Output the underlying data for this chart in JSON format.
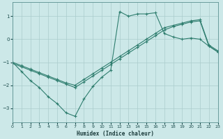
{
  "xlabel": "Humidex (Indice chaleur)",
  "bg_color": "#cce8e8",
  "grid_color": "#aacccc",
  "line_color": "#2e7d6e",
  "xlim": [
    0,
    23
  ],
  "ylim": [
    -3.6,
    1.6
  ],
  "yticks": [
    -3,
    -2,
    -1,
    0,
    1
  ],
  "xticks": [
    0,
    1,
    2,
    3,
    4,
    5,
    6,
    7,
    8,
    9,
    10,
    11,
    12,
    13,
    14,
    15,
    16,
    17,
    18,
    19,
    20,
    21,
    22,
    23
  ],
  "line1_x": [
    0,
    1,
    2,
    3,
    4,
    5,
    6,
    7,
    8,
    9,
    10,
    11,
    12,
    13,
    14,
    15,
    16,
    17,
    18,
    19,
    20,
    21,
    22,
    23
  ],
  "line1_y": [
    -1.0,
    -1.4,
    -1.8,
    -2.1,
    -2.5,
    -2.8,
    -3.2,
    -3.35,
    -2.6,
    -2.05,
    -1.65,
    -1.35,
    1.2,
    1.0,
    1.1,
    1.1,
    1.15,
    0.25,
    0.1,
    0.0,
    0.05,
    0.0,
    -0.3,
    -0.55
  ],
  "line2_x": [
    0,
    1,
    2,
    3,
    4,
    5,
    6,
    7,
    8,
    9,
    10,
    11,
    12,
    13,
    14,
    15,
    16,
    17,
    18,
    19,
    20,
    21,
    22,
    23
  ],
  "line2_y": [
    -1.0,
    -1.15,
    -1.3,
    -1.45,
    -1.6,
    -1.75,
    -1.9,
    -2.0,
    -1.75,
    -1.5,
    -1.25,
    -1.0,
    -0.75,
    -0.5,
    -0.25,
    0.0,
    0.25,
    0.5,
    0.6,
    0.7,
    0.8,
    0.85,
    -0.25,
    -0.5
  ],
  "line3_x": [
    0,
    1,
    2,
    3,
    4,
    5,
    6,
    7,
    8,
    9,
    10,
    11,
    12,
    13,
    14,
    15,
    16,
    17,
    18,
    19,
    20,
    21,
    22,
    23
  ],
  "line3_y": [
    -1.05,
    -1.2,
    -1.35,
    -1.5,
    -1.65,
    -1.8,
    -1.95,
    -2.1,
    -1.85,
    -1.6,
    -1.35,
    -1.1,
    -0.85,
    -0.6,
    -0.35,
    -0.1,
    0.15,
    0.4,
    0.55,
    0.65,
    0.75,
    0.8,
    -0.3,
    -0.55
  ]
}
